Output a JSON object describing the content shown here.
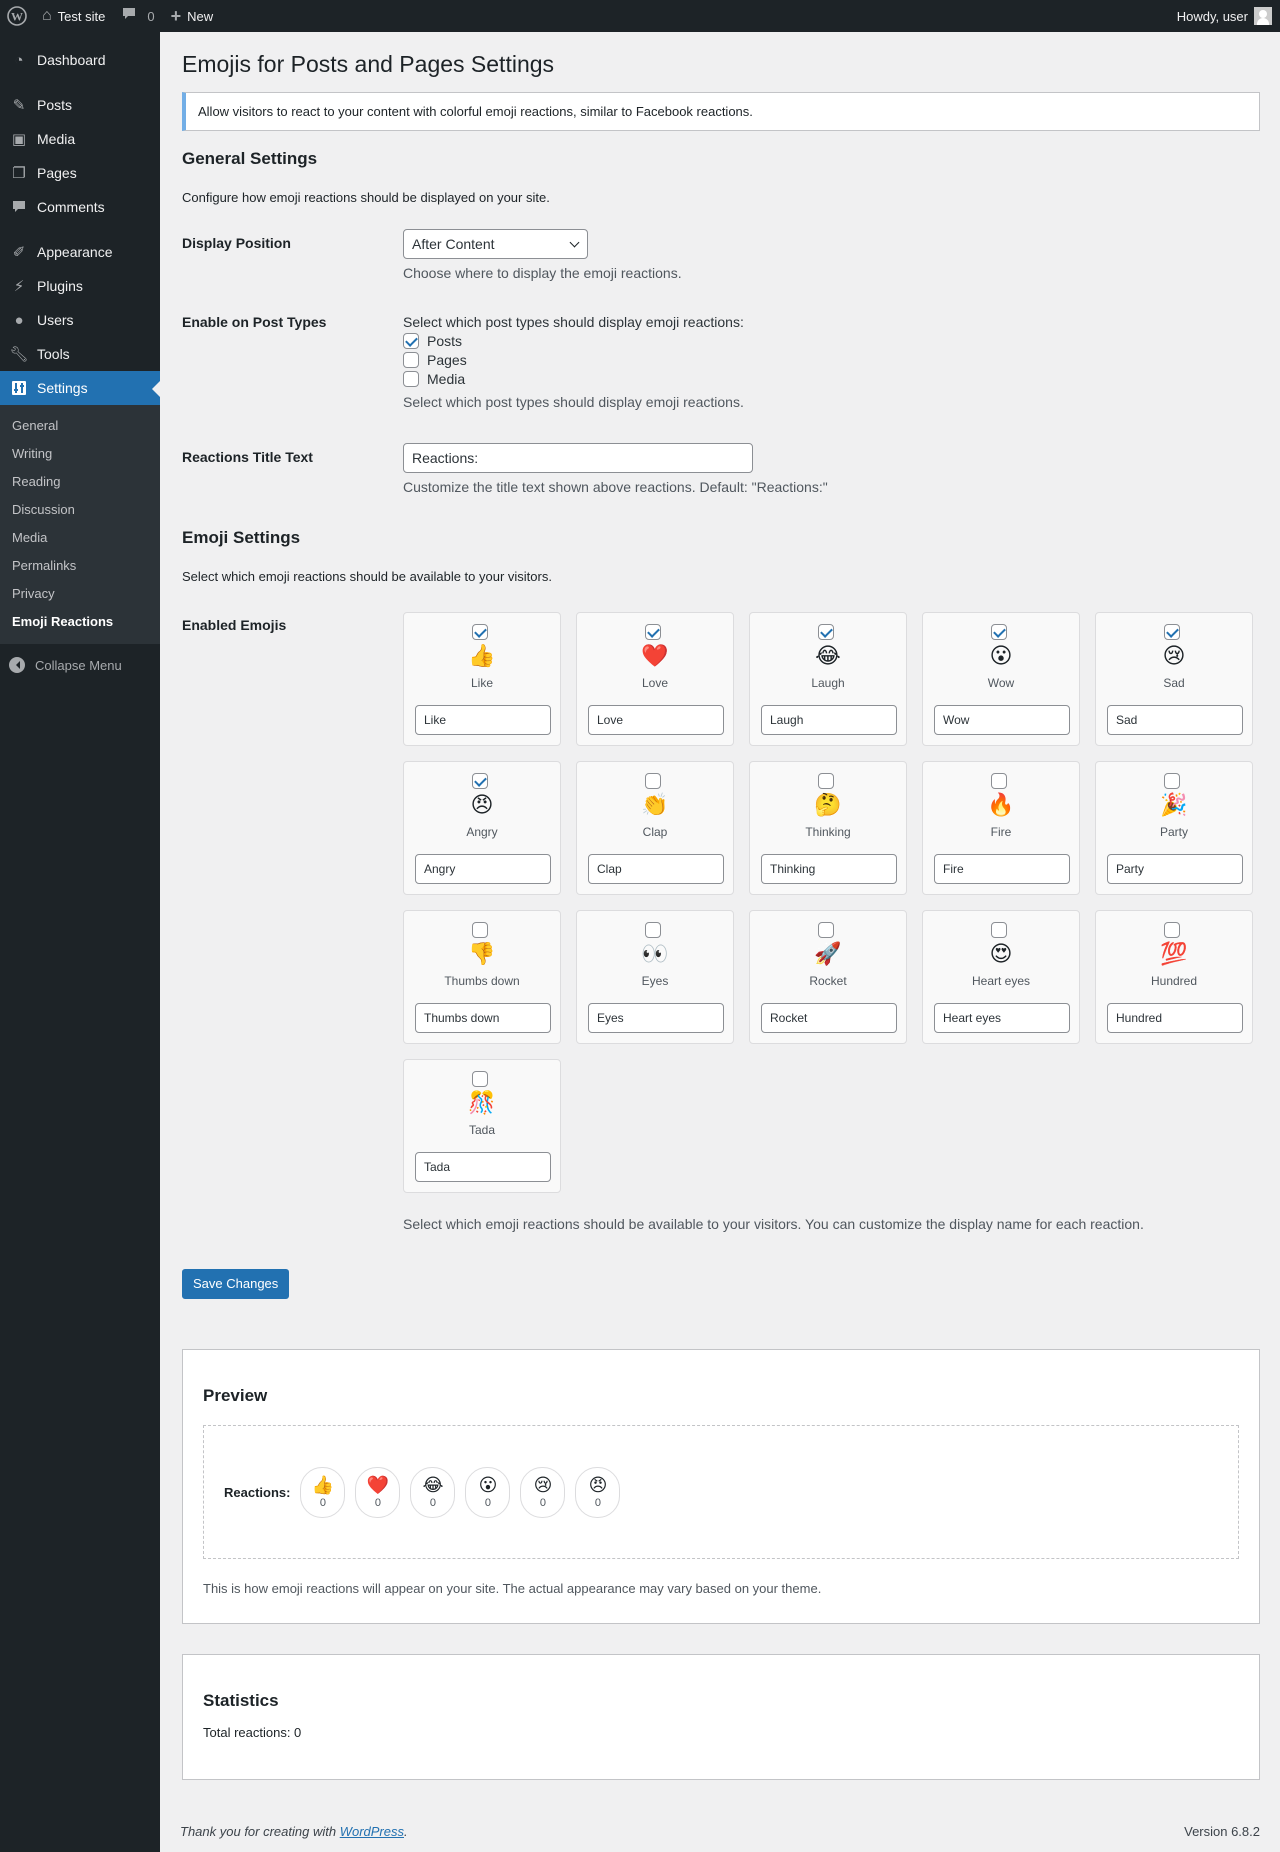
{
  "admin_bar": {
    "site_name": "Test site",
    "comments_count": "0",
    "new_label": "New",
    "howdy": "Howdy, user"
  },
  "sidebar": {
    "items": [
      {
        "label": "Dashboard",
        "icon": "dashboard-icon"
      },
      {
        "label": "Posts",
        "icon": "pin-icon"
      },
      {
        "label": "Media",
        "icon": "media-icon"
      },
      {
        "label": "Pages",
        "icon": "pages-icon"
      },
      {
        "label": "Comments",
        "icon": "comment-icon"
      },
      {
        "label": "Appearance",
        "icon": "brush-icon"
      },
      {
        "label": "Plugins",
        "icon": "plug-icon"
      },
      {
        "label": "Users",
        "icon": "user-icon"
      },
      {
        "label": "Tools",
        "icon": "wrench-icon"
      },
      {
        "label": "Settings",
        "icon": "settings-icon"
      }
    ],
    "submenu": [
      "General",
      "Writing",
      "Reading",
      "Discussion",
      "Media",
      "Permalinks",
      "Privacy",
      "Emoji Reactions"
    ],
    "collapse_label": "Collapse Menu"
  },
  "page": {
    "title": "Emojis for Posts and Pages Settings",
    "notice": "Allow visitors to react to your content with colorful emoji reactions, similar to Facebook reactions."
  },
  "general": {
    "heading": "General Settings",
    "description": "Configure how emoji reactions should be displayed on your site.",
    "display_position_label": "Display Position",
    "display_position_value": "After Content",
    "display_position_desc": "Choose where to display the emoji reactions.",
    "post_types_label": "Enable on Post Types",
    "post_types_intro": "Select which post types should display emoji reactions:",
    "post_types": [
      {
        "label": "Posts",
        "checked": true
      },
      {
        "label": "Pages",
        "checked": false
      },
      {
        "label": "Media",
        "checked": false
      }
    ],
    "post_types_desc": "Select which post types should display emoji reactions.",
    "title_text_label": "Reactions Title Text",
    "title_text_value": "Reactions:",
    "title_text_desc": "Customize the title text shown above reactions. Default: \"Reactions:\""
  },
  "emoji_settings": {
    "heading": "Emoji Settings",
    "description": "Select which emoji reactions should be available to your visitors.",
    "enabled_label": "Enabled Emojis",
    "emojis": [
      {
        "glyph": "👍",
        "name": "Like",
        "value": "Like",
        "checked": true
      },
      {
        "glyph": "❤️",
        "name": "Love",
        "value": "Love",
        "checked": true
      },
      {
        "glyph": "😂",
        "name": "Laugh",
        "value": "Laugh",
        "checked": true
      },
      {
        "glyph": "😮",
        "name": "Wow",
        "value": "Wow",
        "checked": true
      },
      {
        "glyph": "😢",
        "name": "Sad",
        "value": "Sad",
        "checked": true
      },
      {
        "glyph": "😠",
        "name": "Angry",
        "value": "Angry",
        "checked": true
      },
      {
        "glyph": "👏",
        "name": "Clap",
        "value": "Clap",
        "checked": false
      },
      {
        "glyph": "🤔",
        "name": "Thinking",
        "value": "Thinking",
        "checked": false
      },
      {
        "glyph": "🔥",
        "name": "Fire",
        "value": "Fire",
        "checked": false
      },
      {
        "glyph": "🎉",
        "name": "Party",
        "value": "Party",
        "checked": false
      },
      {
        "glyph": "👎",
        "name": "Thumbs down",
        "value": "Thumbs down",
        "checked": false
      },
      {
        "glyph": "👀",
        "name": "Eyes",
        "value": "Eyes",
        "checked": false
      },
      {
        "glyph": "🚀",
        "name": "Rocket",
        "value": "Rocket",
        "checked": false
      },
      {
        "glyph": "😍",
        "name": "Heart eyes",
        "value": "Heart eyes",
        "checked": false
      },
      {
        "glyph": "💯",
        "name": "Hundred",
        "value": "Hundred",
        "checked": false
      },
      {
        "glyph": "🎊",
        "name": "Tada",
        "value": "Tada",
        "checked": false
      }
    ],
    "footer_desc": "Select which emoji reactions should be available to your visitors. You can customize the display name for each reaction."
  },
  "save_label": "Save Changes",
  "preview": {
    "heading": "Preview",
    "reactions_title": "Reactions:",
    "reactions": [
      {
        "glyph": "👍",
        "count": "0"
      },
      {
        "glyph": "❤️",
        "count": "0"
      },
      {
        "glyph": "😂",
        "count": "0"
      },
      {
        "glyph": "😮",
        "count": "0"
      },
      {
        "glyph": "😢",
        "count": "0"
      },
      {
        "glyph": "😠",
        "count": "0"
      }
    ],
    "note": "This is how emoji reactions will appear on your site. The actual appearance may vary based on your theme."
  },
  "statistics": {
    "heading": "Statistics",
    "total": "Total reactions: 0"
  },
  "footer": {
    "thanks_prefix": "Thank you for creating with",
    "link": "WordPress",
    "suffix": ".",
    "version": "Version 6.8.2"
  },
  "colors": {
    "accent": "#2271b1",
    "admin_dark": "#1d2327",
    "notice_border": "#72aee6"
  }
}
